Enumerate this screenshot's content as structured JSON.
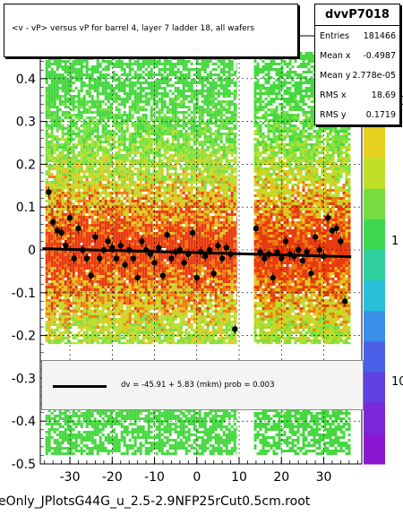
{
  "chart_data": {
    "type": "scatter",
    "title": "<v - vP>       versus   vP for barrel 4, layer 7 ladder 18, all wafers",
    "xlabel": "",
    "ylabel": "",
    "xlim": [
      -37,
      39
    ],
    "ylim": [
      -0.5,
      0.5
    ],
    "xticks": [
      -30,
      -20,
      -10,
      0,
      10,
      20,
      30
    ],
    "yticks": [
      -0.5,
      -0.4,
      -0.3,
      -0.2,
      -0.1,
      0,
      0.1,
      0.2,
      0.3,
      0.4
    ],
    "grid": true,
    "colorbar_ticks": [
      "10",
      "1",
      "10"
    ],
    "profile_points": [
      {
        "x": -35.0,
        "y": 0.135
      },
      {
        "x": -34.0,
        "y": 0.065
      },
      {
        "x": -33.0,
        "y": 0.045
      },
      {
        "x": -32.0,
        "y": 0.04
      },
      {
        "x": -31.0,
        "y": 0.01
      },
      {
        "x": -30.0,
        "y": 0.075
      },
      {
        "x": -29.0,
        "y": -0.02
      },
      {
        "x": -28.0,
        "y": 0.05
      },
      {
        "x": -27.0,
        "y": 0.0
      },
      {
        "x": -26.0,
        "y": -0.02
      },
      {
        "x": -25.0,
        "y": -0.06
      },
      {
        "x": -24.0,
        "y": 0.03
      },
      {
        "x": -23.0,
        "y": -0.02
      },
      {
        "x": -22.0,
        "y": 0.0
      },
      {
        "x": -21.0,
        "y": 0.02
      },
      {
        "x": -20.0,
        "y": 0.005
      },
      {
        "x": -19.0,
        "y": -0.02
      },
      {
        "x": -18.0,
        "y": 0.01
      },
      {
        "x": -17.0,
        "y": -0.035
      },
      {
        "x": -16.0,
        "y": 0.0
      },
      {
        "x": -15.0,
        "y": -0.02
      },
      {
        "x": -14.0,
        "y": -0.065
      },
      {
        "x": -13.0,
        "y": 0.02
      },
      {
        "x": -12.0,
        "y": 0.0
      },
      {
        "x": -11.0,
        "y": -0.01
      },
      {
        "x": -10.0,
        "y": -0.03
      },
      {
        "x": -9.0,
        "y": 0.005
      },
      {
        "x": -8.0,
        "y": -0.06
      },
      {
        "x": -7.0,
        "y": 0.035
      },
      {
        "x": -6.0,
        "y": -0.02
      },
      {
        "x": -5.0,
        "y": -0.005
      },
      {
        "x": -4.0,
        "y": 0.0
      },
      {
        "x": -3.0,
        "y": -0.03
      },
      {
        "x": -2.0,
        "y": -0.01
      },
      {
        "x": -1.0,
        "y": 0.04
      },
      {
        "x": 0.0,
        "y": -0.065
      },
      {
        "x": 1.0,
        "y": -0.005
      },
      {
        "x": 2.0,
        "y": -0.015
      },
      {
        "x": 3.0,
        "y": 0.0
      },
      {
        "x": 4.0,
        "y": -0.055
      },
      {
        "x": 5.0,
        "y": 0.01
      },
      {
        "x": 6.0,
        "y": -0.02
      },
      {
        "x": 7.0,
        "y": 0.005
      },
      {
        "x": 8.0,
        "y": -0.01
      },
      {
        "x": 9.0,
        "y": -0.185
      },
      {
        "x": 14.0,
        "y": 0.05
      },
      {
        "x": 15.0,
        "y": -0.005
      },
      {
        "x": 16.0,
        "y": -0.02
      },
      {
        "x": 17.0,
        "y": -0.01
      },
      {
        "x": 18.0,
        "y": -0.065
      },
      {
        "x": 19.0,
        "y": -0.005
      },
      {
        "x": 20.0,
        "y": -0.02
      },
      {
        "x": 21.0,
        "y": 0.02
      },
      {
        "x": 22.0,
        "y": -0.01
      },
      {
        "x": 23.0,
        "y": -0.015
      },
      {
        "x": 24.0,
        "y": 0.0
      },
      {
        "x": 25.0,
        "y": -0.025
      },
      {
        "x": 26.0,
        "y": -0.005
      },
      {
        "x": 27.0,
        "y": -0.055
      },
      {
        "x": 28.0,
        "y": 0.03
      },
      {
        "x": 29.0,
        "y": 0.0
      },
      {
        "x": 30.0,
        "y": -0.015
      },
      {
        "x": 31.0,
        "y": 0.075
      },
      {
        "x": 32.0,
        "y": 0.045
      },
      {
        "x": 33.0,
        "y": 0.05
      },
      {
        "x": 34.0,
        "y": 0.02
      },
      {
        "x": 35.0,
        "y": -0.12
      }
    ],
    "fit_line": {
      "x": [
        -36.5,
        36.5
      ],
      "y": [
        0.003,
        -0.016
      ]
    }
  },
  "stats": {
    "name": "dvvP7018",
    "rows": [
      {
        "k": "Entries",
        "v": "181466"
      },
      {
        "k": "Mean x",
        "v": "-0.4987"
      },
      {
        "k": "Mean y",
        "v": "2.778e-05"
      },
      {
        "k": "RMS x",
        "v": "18.69"
      },
      {
        "k": "RMS y",
        "v": "0.1719"
      }
    ]
  },
  "fit_text": "dv =  -45.91 +   5.83 (mkm) prob = 0.003",
  "file_label": "eOnly_JPlotsG44G_u_2.5-2.9NFP25rCut0.5cm.root",
  "colors": {
    "profile": "#000000",
    "fit": "#000000"
  }
}
